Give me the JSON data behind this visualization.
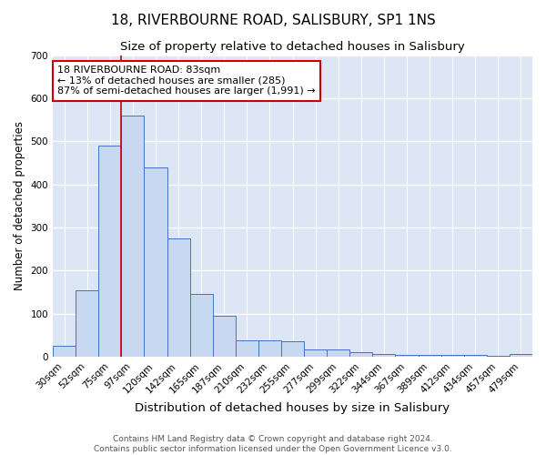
{
  "title": "18, RIVERBOURNE ROAD, SALISBURY, SP1 1NS",
  "subtitle": "Size of property relative to detached houses in Salisbury",
  "xlabel": "Distribution of detached houses by size in Salisbury",
  "ylabel": "Number of detached properties",
  "categories": [
    "30sqm",
    "52sqm",
    "75sqm",
    "97sqm",
    "120sqm",
    "142sqm",
    "165sqm",
    "187sqm",
    "210sqm",
    "232sqm",
    "255sqm",
    "277sqm",
    "299sqm",
    "322sqm",
    "344sqm",
    "367sqm",
    "389sqm",
    "412sqm",
    "434sqm",
    "457sqm",
    "479sqm"
  ],
  "values": [
    25,
    155,
    490,
    560,
    440,
    275,
    145,
    95,
    38,
    38,
    35,
    17,
    17,
    11,
    7,
    5,
    5,
    5,
    5,
    3,
    7
  ],
  "bar_color": "#c6d9f1",
  "bar_edge_color": "#4472c4",
  "red_line_index": 2.5,
  "annotation_text": "18 RIVERBOURNE ROAD: 83sqm\n← 13% of detached houses are smaller (285)\n87% of semi-detached houses are larger (1,991) →",
  "annotation_box_color": "#ffffff",
  "annotation_box_edge": "#cc0000",
  "ylim": [
    0,
    700
  ],
  "yticks": [
    0,
    100,
    200,
    300,
    400,
    500,
    600,
    700
  ],
  "background_color": "#dce6f5",
  "grid_color": "#ffffff",
  "footer_text": "Contains HM Land Registry data © Crown copyright and database right 2024.\nContains public sector information licensed under the Open Government Licence v3.0.",
  "title_fontsize": 11,
  "subtitle_fontsize": 9.5,
  "xlabel_fontsize": 9.5,
  "ylabel_fontsize": 8.5,
  "tick_fontsize": 7.5,
  "footer_fontsize": 6.5
}
